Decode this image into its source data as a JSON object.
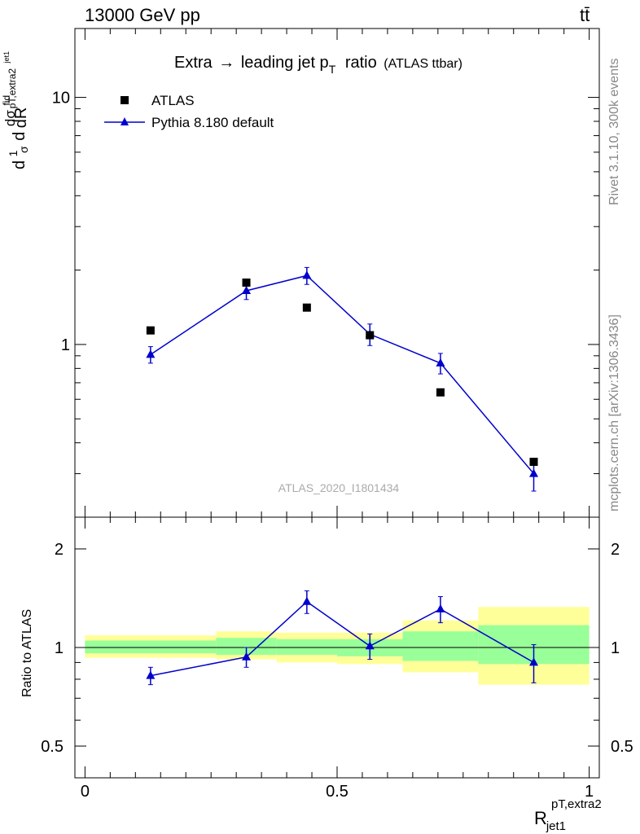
{
  "header": {
    "left": "13000 GeV pp",
    "right": "tt̄"
  },
  "side_labels": {
    "rivet": "Rivet 3.1.10,  300k events",
    "mcplots": "mcplots.cern.ch [arXiv:1306.3436]"
  },
  "chart_data": [
    {
      "type": "scatter",
      "title": "Extra → leading jet pT ratio",
      "title_parts": {
        "before": "Extra",
        "arrow": "→",
        "middle": "leading jet p",
        "sub": "T",
        "after": "ratio",
        "note": "(ATLAS ttbar)"
      },
      "analysis_label": "ATLAS_2020_I1801434",
      "ylabel": "1/σ dσfid/dR(pT,extra2 / jet1)",
      "ylabel_parts": {
        "d1": "d",
        "one": "1",
        "sigma": "σ",
        "d2": "d",
        "dsig": "dσ",
        "fid": "fid",
        "sub": "pT,extra2",
        "jet": "jet1",
        "dR": "dR"
      },
      "yscale": "log",
      "ylim": [
        0.2,
        19
      ],
      "xlim": [
        -0.02,
        1.02
      ],
      "y_ticks": [
        {
          "value": 1,
          "label": "1"
        },
        {
          "value": 10,
          "label": "10"
        }
      ],
      "legend_position": "top-left",
      "series": [
        {
          "name": "ATLAS",
          "marker": "square",
          "color": "#000000",
          "points": [
            {
              "x": 0.13,
              "y": 1.14
            },
            {
              "x": 0.32,
              "y": 1.78
            },
            {
              "x": 0.44,
              "y": 1.41
            },
            {
              "x": 0.565,
              "y": 1.09
            },
            {
              "x": 0.705,
              "y": 0.64
            },
            {
              "x": 0.89,
              "y": 0.335
            }
          ]
        },
        {
          "name": "Pythia 8.180 default",
          "marker": "triangle",
          "color": "#0000cc",
          "line": true,
          "points": [
            {
              "x": 0.13,
              "y": 0.91,
              "err": 0.07
            },
            {
              "x": 0.32,
              "y": 1.65,
              "err": 0.13
            },
            {
              "x": 0.44,
              "y": 1.9,
              "err": 0.15
            },
            {
              "x": 0.565,
              "y": 1.1,
              "err": 0.11
            },
            {
              "x": 0.705,
              "y": 0.84,
              "err": 0.08
            },
            {
              "x": 0.89,
              "y": 0.3,
              "err": 0.045
            }
          ]
        }
      ]
    },
    {
      "type": "scatter",
      "ylabel": "Ratio to ATLAS",
      "xlabel": "R jet1 pT,extra2",
      "xlabel_parts": {
        "R": "R",
        "sup": "pT,extra2",
        "sub": "jet1"
      },
      "yscale": "log",
      "ylim": [
        0.4,
        2.5
      ],
      "xlim": [
        -0.02,
        1.02
      ],
      "y_ticks": [
        {
          "value": 0.5,
          "label": "0.5"
        },
        {
          "value": 1,
          "label": "1"
        },
        {
          "value": 2,
          "label": "2"
        }
      ],
      "x_ticks": [
        {
          "value": 0,
          "label": "0"
        },
        {
          "value": 0.5,
          "label": "0.5"
        },
        {
          "value": 1,
          "label": "1"
        }
      ],
      "reference_line": 1,
      "uncertainty_bands": [
        {
          "x0": 0.0,
          "x1": 0.26,
          "stat": [
            0.96,
            1.05
          ],
          "total": [
            0.93,
            1.09
          ]
        },
        {
          "x0": 0.26,
          "x1": 0.38,
          "stat": [
            0.95,
            1.07
          ],
          "total": [
            0.92,
            1.12
          ]
        },
        {
          "x0": 0.38,
          "x1": 0.5,
          "stat": [
            0.95,
            1.06
          ],
          "total": [
            0.9,
            1.11
          ]
        },
        {
          "x0": 0.5,
          "x1": 0.63,
          "stat": [
            0.94,
            1.06
          ],
          "total": [
            0.89,
            1.11
          ]
        },
        {
          "x0": 0.63,
          "x1": 0.78,
          "stat": [
            0.91,
            1.12
          ],
          "total": [
            0.84,
            1.21
          ]
        },
        {
          "x0": 0.78,
          "x1": 1.0,
          "stat": [
            0.89,
            1.17
          ],
          "total": [
            0.77,
            1.33
          ]
        }
      ],
      "series": [
        {
          "name": "Pythia 8.180 default",
          "marker": "triangle",
          "color": "#0000cc",
          "line": true,
          "points": [
            {
              "x": 0.13,
              "y": 0.82,
              "err": 0.05
            },
            {
              "x": 0.32,
              "y": 0.935,
              "err": 0.065
            },
            {
              "x": 0.44,
              "y": 1.38,
              "err": 0.11
            },
            {
              "x": 0.565,
              "y": 1.01,
              "err": 0.09
            },
            {
              "x": 0.705,
              "y": 1.31,
              "err": 0.12
            },
            {
              "x": 0.89,
              "y": 0.9,
              "err": 0.12
            }
          ]
        }
      ]
    }
  ]
}
